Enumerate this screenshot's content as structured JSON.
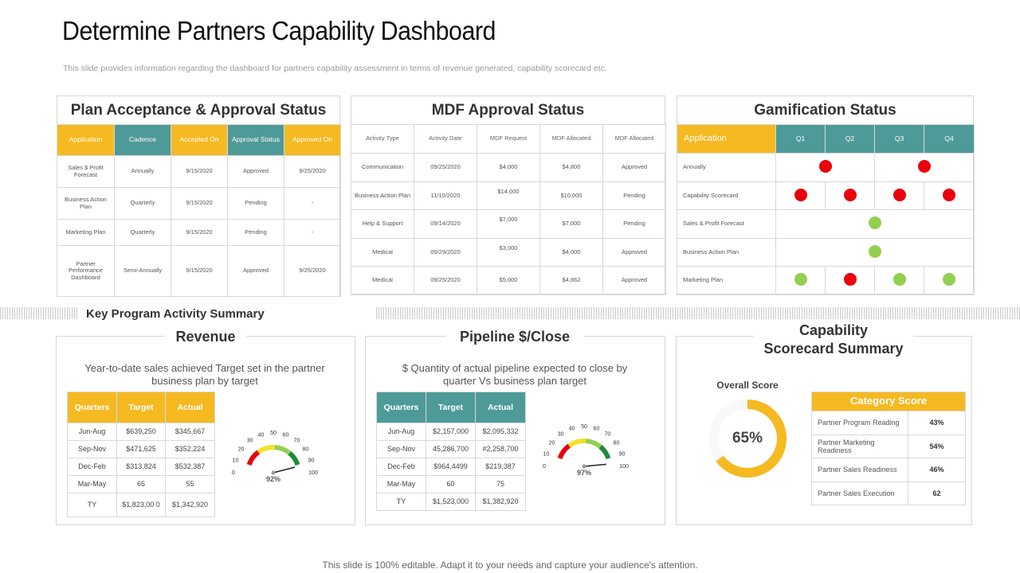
{
  "header": {
    "title": "Determine Partners Capability Dashboard",
    "subtitle": "This slide provides information regarding the dashboard for partners capability assessment in terms of revenue generated, capability scorecard etc."
  },
  "plan": {
    "title": "Plan Acceptance & Approval Status",
    "headers": [
      "Application",
      "Cadence",
      "Accepted On",
      "Approval Status",
      "Approved On"
    ],
    "rows": [
      [
        "Sales $ Profit Forecast",
        "Annually",
        "9/15/2020",
        "Approved",
        "9/25/2020"
      ],
      [
        "Business Action Plan",
        "Quarterly",
        "9/15/2020",
        "Pending",
        "-"
      ],
      [
        "Marketing Plan",
        "Quarterly",
        "9/15/2020",
        "Pending",
        "-"
      ],
      [
        "Partner Performance Dashboard",
        "Semi-Annually",
        "9/15/2020",
        "Approved",
        "9/25/2020"
      ]
    ]
  },
  "mdf": {
    "title": "MDF Approval Status",
    "headers": [
      "Activity Type",
      "Activity Date",
      "MDF Request",
      "MDF Allocated",
      "MDF Allocated"
    ],
    "rows": [
      [
        "Communication",
        "09/25/2020",
        "$4,000",
        "$4,800",
        "Approved"
      ],
      [
        "Business Action Plan",
        "11/10/2020",
        "$14,000",
        "$10,000",
        "Pending"
      ],
      [
        "Help & Support",
        "09/14/2020",
        "$7,000",
        "$7,000",
        "Pending"
      ],
      [
        "Medical",
        "09/29/2020",
        "$3,000",
        "$4,000",
        "Approved"
      ],
      [
        "Medical",
        "09/25/2020",
        "$5,000",
        "$4,862",
        "Approved"
      ]
    ]
  },
  "gamification": {
    "title": "Gamification Status",
    "headers": [
      "Application",
      "Q1",
      "Q2",
      "Q3",
      "Q4"
    ],
    "rows": [
      {
        "label": "Annually",
        "marks": [
          "red-between-q1-q2",
          "red-between-q3-q4"
        ]
      },
      {
        "label": "Capability Scorecard",
        "marks": [
          "red-q1",
          "red-q2",
          "red-q3",
          "red-q4"
        ]
      },
      {
        "label": "Sales & Profit Forecast",
        "marks": [
          "green-center"
        ]
      },
      {
        "label": "Business Action Plan",
        "marks": [
          "green-center"
        ]
      },
      {
        "label": "Marketing Plan",
        "marks": [
          "green-q1",
          "red-q2",
          "green-q3",
          "green-q4"
        ]
      }
    ],
    "colors": {
      "red": "#e8000b",
      "green": "#92d050"
    }
  },
  "key_program": {
    "title": "Key Program Activity  Summary"
  },
  "revenue": {
    "title": "Revenue",
    "description": "Year-to-date sales achieved Target set in the partner business plan by target",
    "headers": [
      "Quarters",
      "Target",
      "Actual"
    ],
    "rows": [
      [
        "Jun-Aug",
        "$639,250",
        "$345,667"
      ],
      [
        "Sep-Nov",
        "$471,625",
        "$352,224"
      ],
      [
        "Dec-Feb",
        "$313,824",
        "$532,387"
      ],
      [
        "Mar-May",
        "65",
        "55"
      ],
      [
        "TY",
        "$1,823,00 0",
        "$1,342,920"
      ]
    ],
    "gauge": {
      "value": 92,
      "label": "92%",
      "ticks": [
        "0",
        "10",
        "20",
        "30",
        "40",
        "50",
        "60",
        "70",
        "80",
        "90",
        "100"
      ]
    }
  },
  "pipeline": {
    "title": "Pipeline $/Close",
    "description": "$ Quantity of actual pipeline expected to close by quarter Vs business plan target",
    "headers": [
      "Quarters",
      "Target",
      "Actual"
    ],
    "rows": [
      [
        "Jun-Aug",
        "$2,157,000",
        "$2,095,332"
      ],
      [
        "Sep-Nov",
        "45,286,700",
        "#2,258,700"
      ],
      [
        "Dec-Feb",
        "$964,4499",
        "$219,387"
      ],
      [
        "Mar-May",
        "60",
        "75"
      ],
      [
        "TY",
        "$1,523,000",
        "$1,382,920"
      ]
    ],
    "gauge": {
      "value": 97,
      "label": "97%",
      "ticks": [
        "0",
        "10",
        "20",
        "30",
        "40",
        "50",
        "60",
        "70",
        "80",
        "90",
        "100"
      ]
    }
  },
  "capability": {
    "title_line1": "Capability",
    "title_line2": "Scorecard Summary",
    "overall_label": "Overall Score",
    "overall_value": 65,
    "overall_text": "65%",
    "category_header": "Category Score",
    "categories": [
      [
        "Partner Program  Reading",
        "43%"
      ],
      [
        "Partner Marketing Readiness",
        "54%"
      ],
      [
        "Partner Sales Readiness",
        "46%"
      ],
      [
        "Partner Sales Execution",
        "62"
      ]
    ]
  },
  "footer": {
    "text": "This slide is 100% editable. Adapt it to your needs and capture your audience's attention."
  },
  "colors": {
    "yellow": "#f5b921",
    "teal": "#4e9a98",
    "border": "#d9d9d9"
  }
}
